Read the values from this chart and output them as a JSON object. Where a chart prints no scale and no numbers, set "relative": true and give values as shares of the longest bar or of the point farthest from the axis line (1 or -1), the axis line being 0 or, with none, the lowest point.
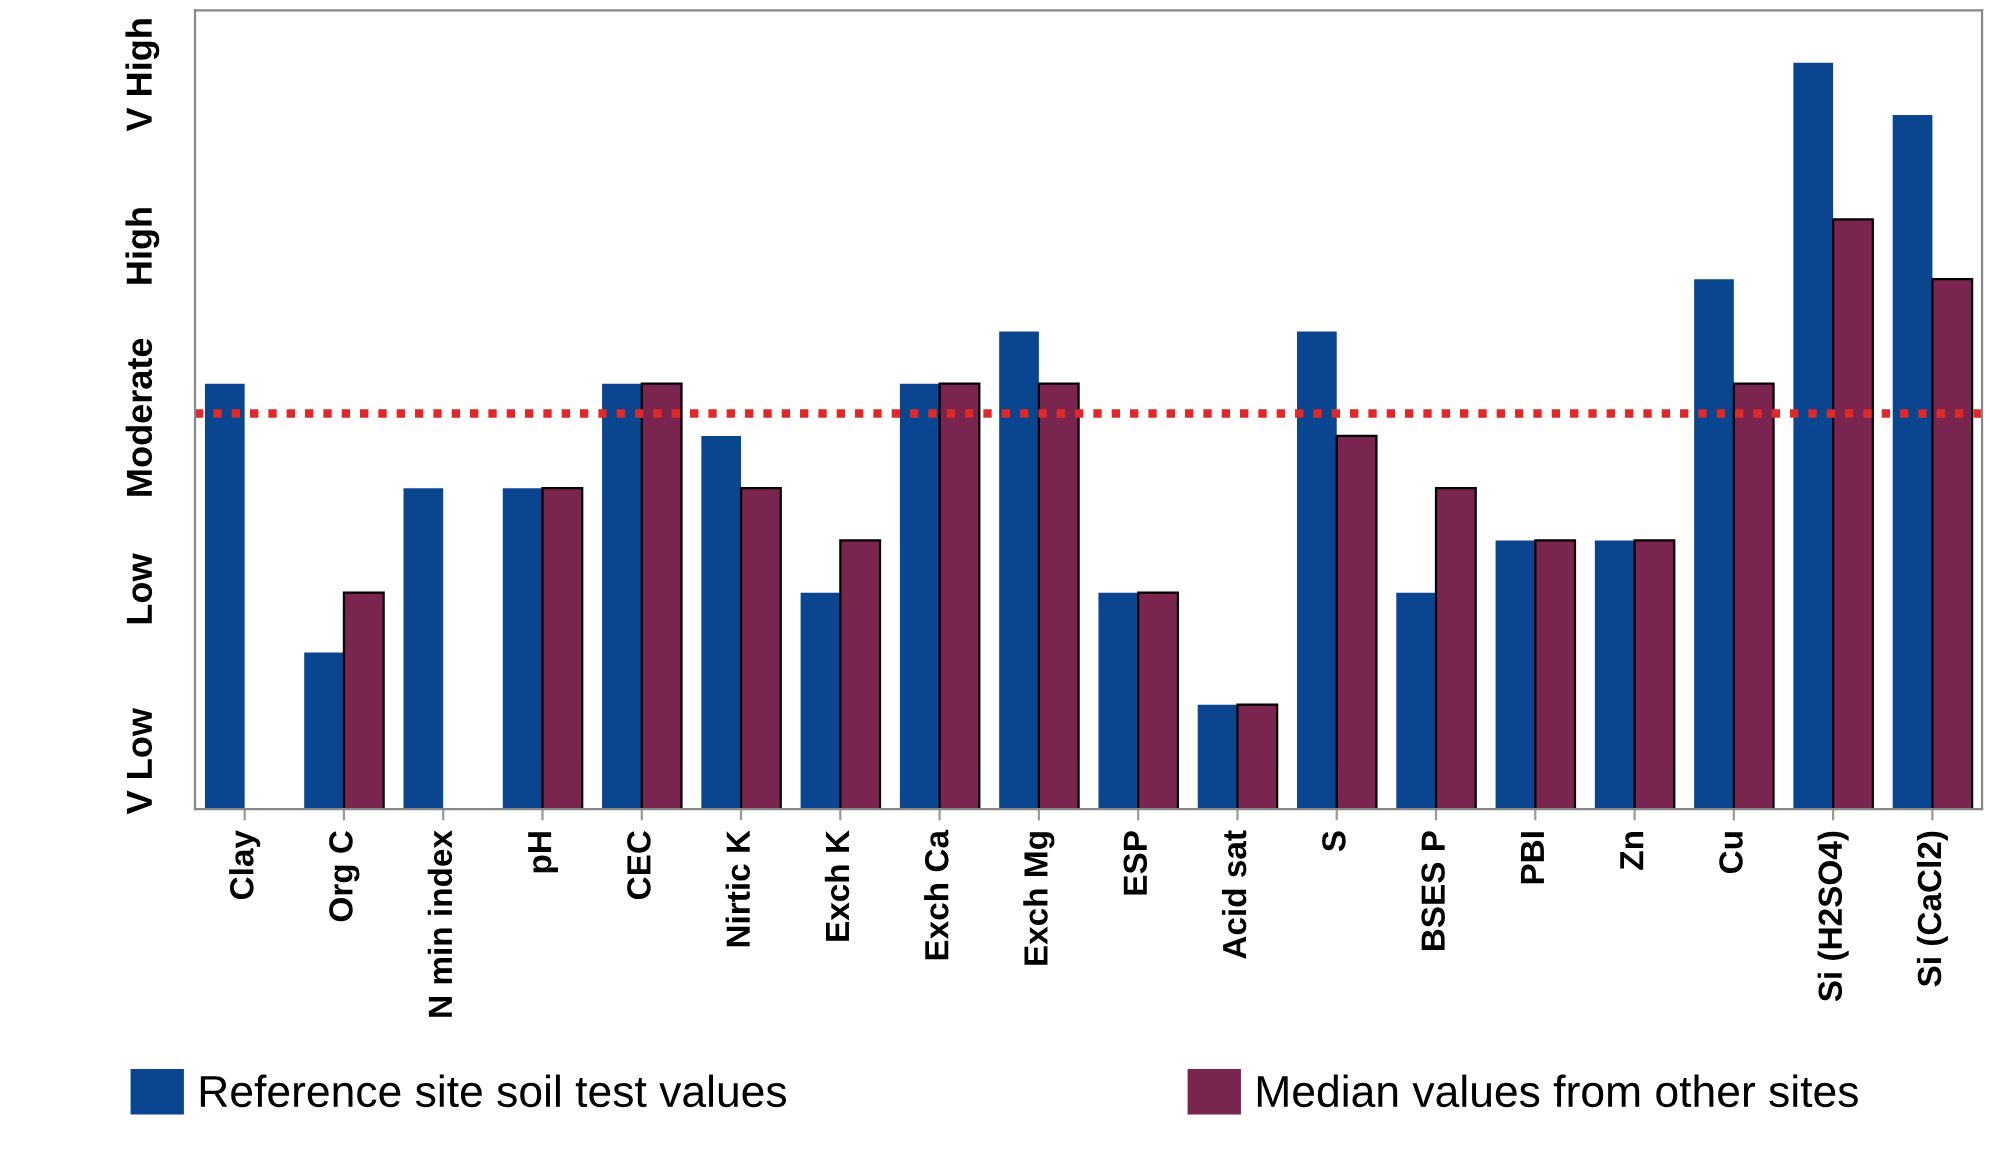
{
  "chart_data": {
    "type": "bar",
    "categories": [
      "Clay",
      "Org C",
      "N min index",
      "pH",
      "CEC",
      "Nirtic K",
      "Exch K",
      "Exch Ca",
      "Exch Mg",
      "ESP",
      "Acid sat",
      "S",
      "BSES P",
      "PBI",
      "Zn",
      "Cu",
      "Si (H2SO4)",
      "Si (CaCl2)"
    ],
    "series": [
      {
        "name": "Reference site soil test values",
        "color": "#0a4690",
        "values": [
          0.57,
          0.21,
          0.43,
          0.43,
          0.57,
          0.5,
          0.29,
          0.57,
          0.64,
          0.29,
          0.14,
          0.64,
          0.29,
          0.36,
          0.36,
          0.71,
          1,
          0.93
        ]
      },
      {
        "name": "Median values from other sites",
        "color": "#7a2450",
        "values": [
          null,
          0.29,
          null,
          0.43,
          0.57,
          0.43,
          0.36,
          0.57,
          0.57,
          0.29,
          0.14,
          0.5,
          0.43,
          0.36,
          0.36,
          0.57,
          0.79,
          0.71
        ]
      }
    ],
    "relative": true,
    "annotations": [
      "V Low",
      "Low",
      "Moderate",
      "High",
      "V High"
    ],
    "ref_lines": [
      {
        "axis": "y",
        "value": 0.53,
        "color": "#e02828",
        "line_style": "dotted"
      }
    ],
    "grid": false,
    "legend": "bottom"
  }
}
